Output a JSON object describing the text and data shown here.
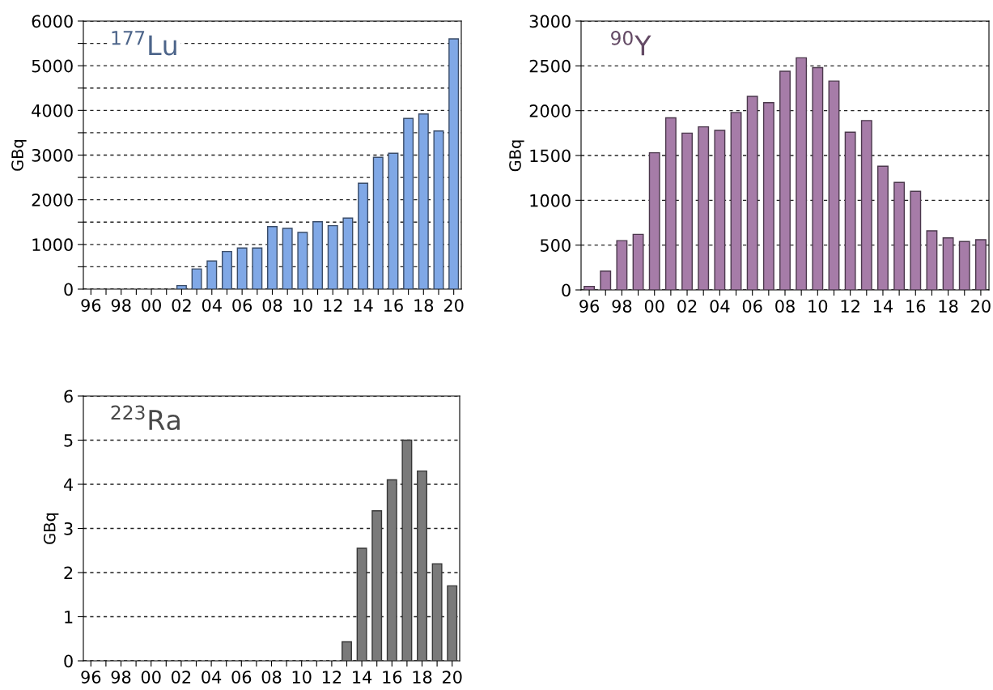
{
  "chart_data": [
    {
      "type": "bar",
      "title": "$^{177}$Lu",
      "ylabel": "GBq",
      "categories": [
        "96",
        null,
        "98",
        null,
        "00",
        null,
        "02",
        null,
        "04",
        null,
        "06",
        null,
        "08",
        null,
        "10",
        null,
        "12",
        null,
        "14",
        null,
        "16",
        null,
        "18",
        null,
        "20"
      ],
      "values": [
        null,
        null,
        null,
        null,
        null,
        null,
        80,
        450,
        630,
        840,
        920,
        920,
        1400,
        1360,
        1270,
        1510,
        1420,
        1590,
        2370,
        2950,
        3040,
        3820,
        3920,
        3540,
        5600
      ],
      "color": "#80a8e6",
      "ylim": [
        0,
        6000
      ],
      "yticks": [
        0,
        {
          "value": 500,
          "label": null
        },
        1000,
        {
          "value": 1500,
          "label": null
        },
        2000,
        {
          "value": 2500,
          "label": null
        },
        3000,
        {
          "value": 3500,
          "label": null
        },
        4000,
        {
          "value": 4500,
          "label": null
        },
        5000,
        {
          "value": 5500,
          "label": null
        },
        6000
      ],
      "grid": "y"
    },
    {
      "type": "bar",
      "title": "$^{90}$Y",
      "ylabel": "GBq",
      "categories": [
        "96",
        null,
        "98",
        null,
        "00",
        null,
        "02",
        null,
        "04",
        null,
        "06",
        null,
        "08",
        null,
        "10",
        null,
        "12",
        null,
        "14",
        null,
        "16",
        null,
        "18",
        null,
        "20"
      ],
      "values": [
        40,
        210,
        550,
        620,
        1530,
        1920,
        1750,
        1820,
        1780,
        1980,
        2160,
        2090,
        2440,
        2590,
        2480,
        2330,
        1760,
        1890,
        1380,
        1200,
        1100,
        660,
        580,
        540,
        560
      ],
      "color": "#a67ca8",
      "ylim": [
        0,
        3000
      ],
      "yticks": [
        0,
        500,
        1000,
        1500,
        2000,
        2500,
        3000
      ],
      "grid": "y"
    },
    {
      "type": "bar",
      "title": "$^{223}$Ra",
      "ylabel": "GBq",
      "categories": [
        "96",
        null,
        "98",
        null,
        "00",
        null,
        "02",
        null,
        "04",
        null,
        "06",
        null,
        "08",
        null,
        "10",
        null,
        "12",
        null,
        "14",
        null,
        "16",
        null,
        "18",
        null,
        "20"
      ],
      "values": [
        null,
        null,
        null,
        null,
        null,
        null,
        null,
        null,
        null,
        null,
        null,
        null,
        null,
        null,
        null,
        null,
        null,
        0.43,
        2.55,
        3.4,
        4.1,
        5.0,
        4.3,
        2.2,
        1.7
      ],
      "color": "#7a7a7a",
      "ylim": [
        0,
        6
      ],
      "yticks": [
        0,
        1,
        2,
        3,
        4,
        5,
        6
      ],
      "grid": "y"
    }
  ]
}
